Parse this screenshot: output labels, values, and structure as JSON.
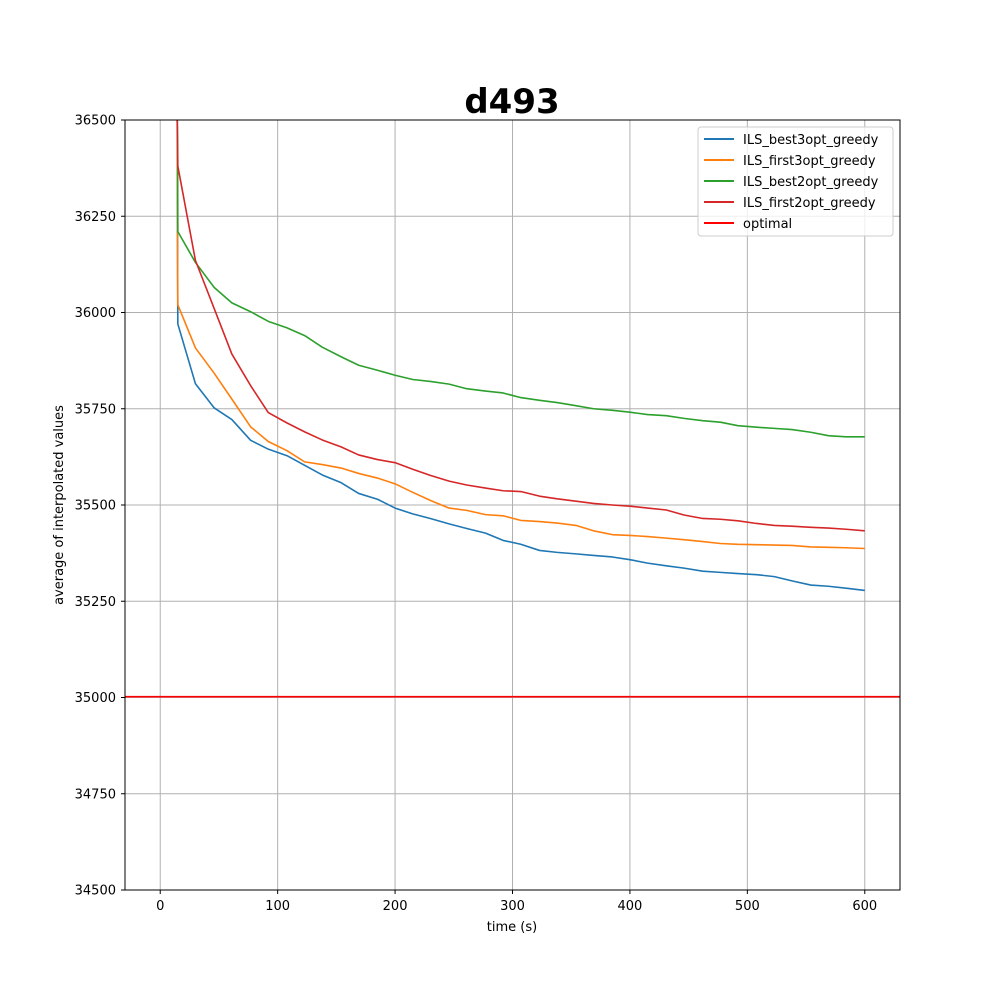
{
  "chart_data": {
    "type": "line",
    "title": "d493",
    "xlabel": "time (s)",
    "ylabel": "average of interpolated values",
    "xlim": [
      -30,
      630
    ],
    "ylim": [
      34500,
      36500
    ],
    "xticks": [
      "0",
      "100",
      "200",
      "300",
      "400",
      "500",
      "600"
    ],
    "yticks": [
      "34500",
      "34750",
      "35000",
      "35250",
      "35500",
      "35750",
      "36000",
      "36250",
      "36500"
    ],
    "grid": true,
    "legend_position": "top-right",
    "series": [
      {
        "name": "ILS_best3opt_greedy",
        "color": "#1f77b4",
        "x": [
          14.5,
          14.8,
          15,
          30,
          46,
          61,
          77,
          92,
          108,
          123,
          138,
          154,
          169,
          185,
          200,
          215,
          230,
          246,
          261,
          277,
          292,
          307,
          323,
          338,
          354,
          369,
          385,
          400,
          415,
          431,
          446,
          462,
          477,
          492,
          508,
          523,
          538,
          554,
          569,
          584,
          600
        ],
        "y": [
          36500,
          36100,
          35970,
          35815,
          35752,
          35722,
          35668,
          35645,
          35628,
          35603,
          35578,
          35558,
          35530,
          35515,
          35492,
          35477,
          35465,
          35451,
          35439,
          35427,
          35408,
          35398,
          35382,
          35377,
          35373,
          35369,
          35365,
          35358,
          35349,
          35342,
          35336,
          35328,
          35325,
          35322,
          35319,
          35314,
          35303,
          35292,
          35289,
          35284,
          35278
        ]
      },
      {
        "name": "ILS_first3opt_greedy",
        "color": "#ff7f0e",
        "x": [
          14.5,
          14.8,
          15,
          30,
          46,
          61,
          77,
          92,
          108,
          123,
          138,
          154,
          169,
          185,
          200,
          215,
          230,
          246,
          261,
          277,
          292,
          307,
          323,
          338,
          354,
          369,
          385,
          400,
          415,
          431,
          446,
          462,
          477,
          492,
          508,
          523,
          538,
          554,
          569,
          584,
          600
        ],
        "y": [
          36500,
          36150,
          36020,
          35908,
          35842,
          35775,
          35703,
          35665,
          35641,
          35612,
          35605,
          35596,
          35582,
          35570,
          35555,
          35533,
          35512,
          35492,
          35486,
          35475,
          35472,
          35460,
          35457,
          35453,
          35447,
          35433,
          35423,
          35421,
          35418,
          35414,
          35410,
          35405,
          35400,
          35398,
          35397,
          35396,
          35395,
          35391,
          35390,
          35389,
          35387
        ]
      },
      {
        "name": "ILS_best2opt_greedy",
        "color": "#2ca02c",
        "x": [
          14.5,
          14.8,
          15,
          30,
          46,
          61,
          77,
          92,
          108,
          123,
          138,
          154,
          169,
          185,
          200,
          215,
          230,
          246,
          261,
          277,
          292,
          307,
          323,
          338,
          354,
          369,
          385,
          400,
          415,
          431,
          446,
          462,
          477,
          492,
          508,
          523,
          538,
          554,
          569,
          584,
          600
        ],
        "y": [
          36500,
          36380,
          36210,
          36130,
          36065,
          36025,
          36002,
          35977,
          35960,
          35940,
          35910,
          35885,
          35863,
          35850,
          35837,
          35826,
          35821,
          35814,
          35802,
          35796,
          35791,
          35779,
          35772,
          35766,
          35758,
          35750,
          35746,
          35741,
          35735,
          35732,
          35725,
          35719,
          35715,
          35706,
          35702,
          35699,
          35696,
          35689,
          35680,
          35677,
          35677
        ]
      },
      {
        "name": "ILS_first2opt_greedy",
        "color": "#d62728",
        "x": [
          14.5,
          15,
          30,
          46,
          61,
          77,
          92,
          108,
          123,
          138,
          154,
          169,
          185,
          200,
          215,
          230,
          246,
          261,
          277,
          292,
          307,
          323,
          338,
          354,
          369,
          385,
          400,
          415,
          431,
          446,
          462,
          477,
          492,
          508,
          523,
          538,
          554,
          569,
          584,
          600
        ],
        "y": [
          36500,
          36380,
          36135,
          36010,
          35892,
          35810,
          35740,
          35713,
          35690,
          35669,
          35651,
          35630,
          35618,
          35610,
          35593,
          35577,
          35562,
          35552,
          35544,
          35537,
          35535,
          35523,
          35516,
          35510,
          35504,
          35500,
          35497,
          35492,
          35487,
          35474,
          35465,
          35463,
          35459,
          35452,
          35447,
          35445,
          35442,
          35440,
          35437,
          35433
        ]
      },
      {
        "name": "optimal",
        "color": "#ff0000",
        "x": [
          -30,
          630
        ],
        "y": [
          35002,
          35002
        ]
      }
    ]
  }
}
